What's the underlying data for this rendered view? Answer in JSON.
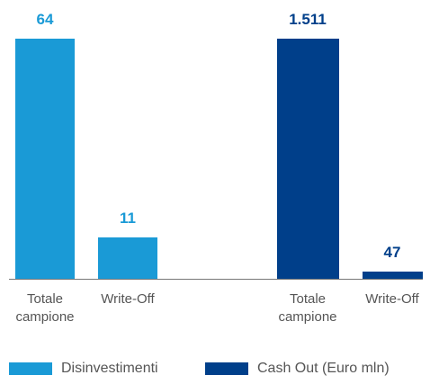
{
  "chart_data": {
    "type": "bar",
    "categories": [
      "Totale campione",
      "Write-Off",
      "Totale campione",
      "Write-Off"
    ],
    "series": [
      {
        "name": "Disinvestimenti",
        "color": "#1a9ad6",
        "values": [
          64,
          11,
          null,
          null
        ]
      },
      {
        "name": "Cash Out (Euro mln)",
        "color": "#003f8a",
        "axis": "y2",
        "values": [
          null,
          null,
          1511,
          47
        ],
        "value_labels": [
          null,
          null,
          "1.511",
          "47"
        ]
      }
    ],
    "ylim": [
      0,
      64
    ],
    "y2lim": [
      0,
      1511
    ],
    "legend": "bottom"
  }
}
